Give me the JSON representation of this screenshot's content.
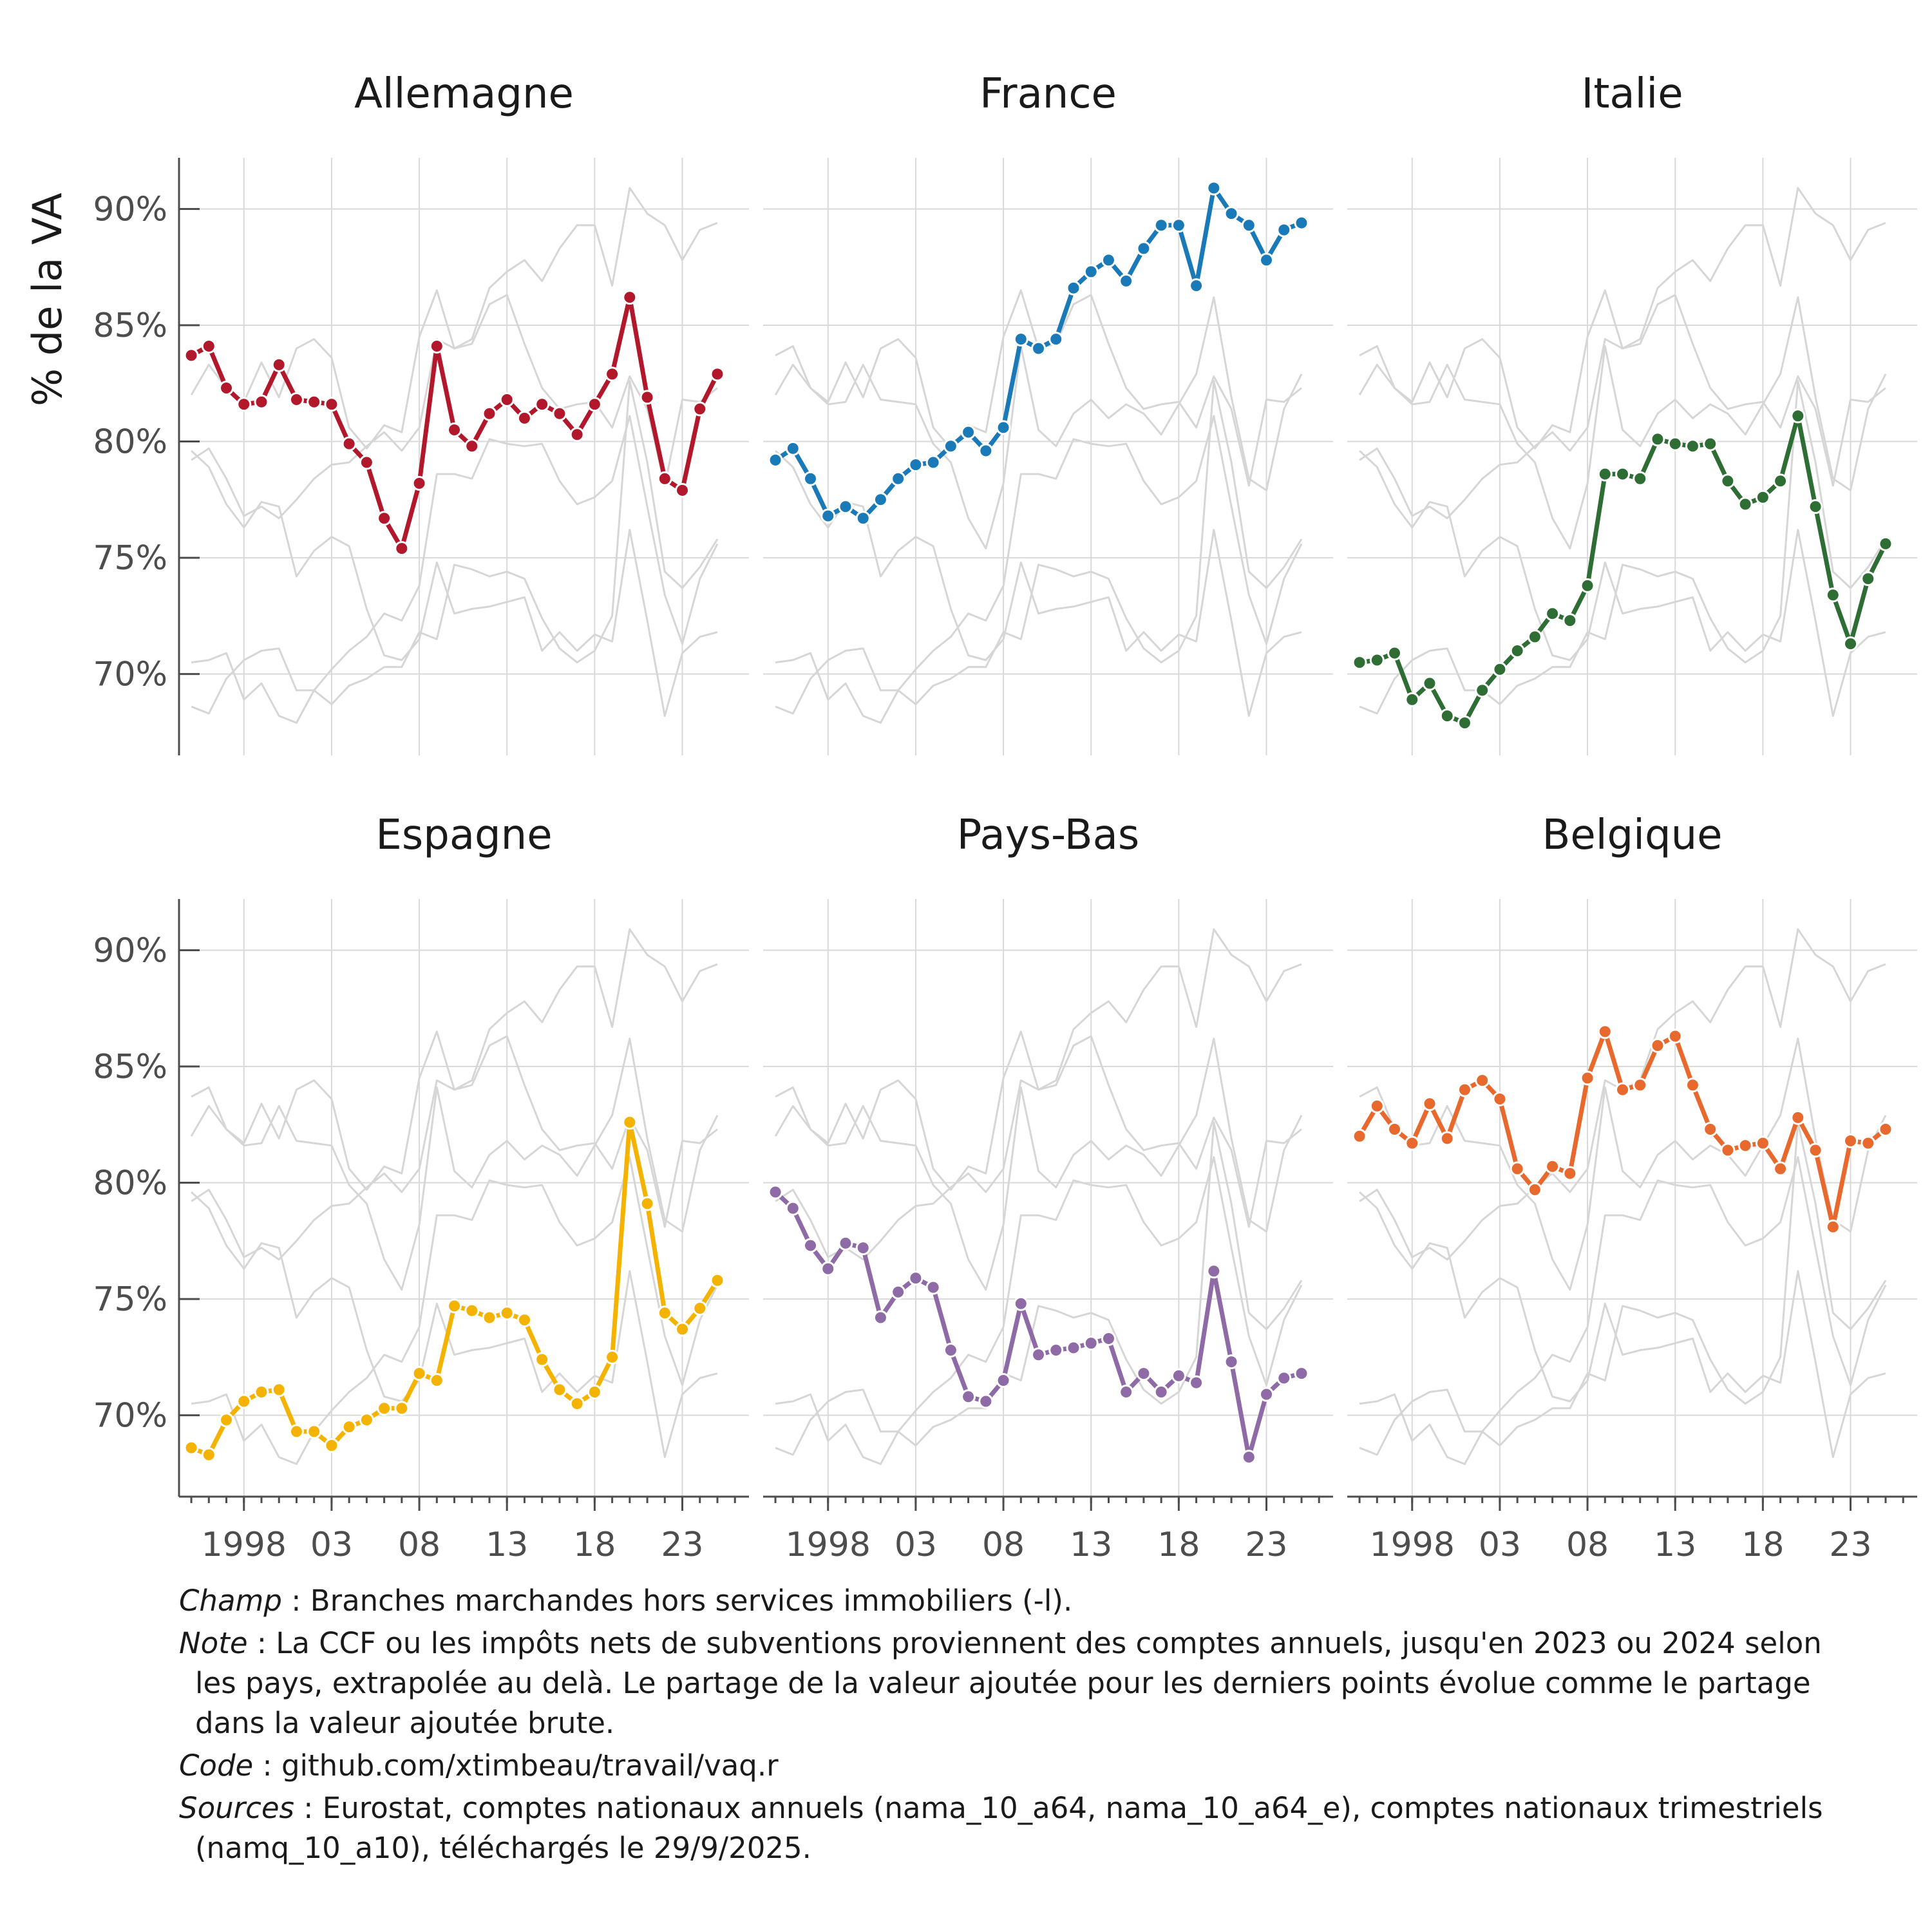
{
  "chart_data": {
    "type": "line",
    "ylabel": "% de la VA",
    "ylim": [
      66.5,
      92.2
    ],
    "yticks": [
      70,
      75,
      80,
      85,
      90
    ],
    "ytick_labels": [
      "70%",
      "75%",
      "80%",
      "85%",
      "90%"
    ],
    "xlim": [
      1994.3,
      2026.8
    ],
    "x": [
      1995,
      1996,
      1997,
      1998,
      1999,
      2000,
      2001,
      2002,
      2003,
      2004,
      2005,
      2006,
      2007,
      2008,
      2009,
      2010,
      2011,
      2012,
      2013,
      2014,
      2015,
      2016,
      2017,
      2018,
      2019,
      2020,
      2021,
      2022,
      2023,
      2024,
      2025
    ],
    "xticks": [
      1998,
      2003,
      2008,
      2013,
      2018,
      2023
    ],
    "xtick_labels": [
      "1998",
      "03",
      "08",
      "13",
      "18",
      "23"
    ],
    "minor_xticks": [
      1995,
      1996,
      1997,
      1998,
      1999,
      2000,
      2001,
      2002,
      2003,
      2004,
      2005,
      2006,
      2007,
      2008,
      2009,
      2010,
      2011,
      2012,
      2013,
      2014,
      2015,
      2016,
      2017,
      2018,
      2019,
      2020,
      2021,
      2022,
      2023,
      2024,
      2025,
      2026
    ],
    "grid": true,
    "background_series_color": "#d6d6d6",
    "series": [
      {
        "name": "Allemagne",
        "color": "#b2182b",
        "values": [
          83.7,
          84.1,
          82.3,
          81.6,
          81.7,
          83.3,
          81.8,
          81.7,
          81.6,
          79.9,
          79.1,
          76.7,
          75.4,
          78.2,
          84.1,
          80.5,
          79.8,
          81.2,
          81.8,
          81.0,
          81.6,
          81.2,
          80.3,
          81.6,
          82.9,
          86.2,
          81.9,
          78.4,
          77.9,
          81.4,
          82.9
        ]
      },
      {
        "name": "France",
        "color": "#1a7ab8",
        "values": [
          79.2,
          79.7,
          78.4,
          76.8,
          77.2,
          76.7,
          77.5,
          78.4,
          79.0,
          79.1,
          79.8,
          80.4,
          79.6,
          80.6,
          84.4,
          84.0,
          84.4,
          86.6,
          87.3,
          87.8,
          86.9,
          88.3,
          89.3,
          89.3,
          86.7,
          90.9,
          89.8,
          89.3,
          87.8,
          89.1,
          89.4
        ]
      },
      {
        "name": "Italie",
        "color": "#2e6e35",
        "values": [
          70.5,
          70.6,
          70.9,
          68.9,
          69.6,
          68.2,
          67.9,
          69.3,
          70.2,
          71.0,
          71.6,
          72.6,
          72.3,
          73.8,
          78.6,
          78.6,
          78.4,
          80.1,
          79.9,
          79.8,
          79.9,
          78.3,
          77.3,
          77.6,
          78.3,
          81.1,
          77.2,
          73.4,
          71.3,
          74.1,
          75.6
        ]
      },
      {
        "name": "Espagne",
        "color": "#f4b300",
        "values": [
          68.6,
          68.3,
          69.8,
          70.6,
          71.0,
          71.1,
          69.3,
          69.3,
          68.7,
          69.5,
          69.8,
          70.3,
          70.3,
          71.8,
          71.5,
          74.7,
          74.5,
          74.2,
          74.4,
          74.1,
          72.4,
          71.1,
          70.5,
          71.0,
          72.5,
          82.6,
          79.1,
          74.4,
          73.7,
          74.6,
          75.8
        ]
      },
      {
        "name": "Pays-Bas",
        "color": "#8e6aa6",
        "values": [
          79.6,
          78.9,
          77.3,
          76.3,
          77.4,
          77.2,
          74.2,
          75.3,
          75.9,
          75.5,
          72.8,
          70.8,
          70.6,
          71.5,
          74.8,
          72.6,
          72.8,
          72.9,
          73.1,
          73.3,
          71.0,
          71.8,
          71.0,
          71.7,
          71.4,
          76.2,
          72.3,
          68.2,
          70.9,
          71.6,
          71.8
        ]
      },
      {
        "name": "Belgique",
        "color": "#e8692d",
        "values": [
          82.0,
          83.3,
          82.3,
          81.7,
          83.4,
          81.9,
          84.0,
          84.4,
          83.6,
          80.6,
          79.7,
          80.7,
          80.4,
          84.5,
          86.5,
          84.0,
          84.2,
          85.9,
          86.3,
          84.2,
          82.3,
          81.4,
          81.6,
          81.7,
          80.6,
          82.8,
          81.4,
          78.1,
          81.8,
          81.7,
          82.3
        ]
      }
    ]
  },
  "notes": {
    "champ_key": "Champ",
    "champ_text": " : Branches marchandes hors services immobiliers (-l).",
    "note_key": "Note",
    "note_text_1": " : La CCF ou les impôts nets de subventions proviennent des comptes annuels, jusqu'en 2023 ou 2024 selon",
    "note_text_2": "les pays, extrapolée au delà. Le partage de la valeur ajoutée pour les derniers points évolue comme le partage",
    "note_text_3": "dans la valeur ajoutée brute.",
    "code_key": "Code",
    "code_text": " : github.com/xtimbeau/travail/vaq.r",
    "sources_key": "Sources",
    "sources_text_1": " : Eurostat, comptes nationaux annuels (nama_10_a64, nama_10_a64_e), comptes nationaux trimestriels",
    "sources_text_2": "(namq_10_a10), téléchargés le 29/9/2025."
  }
}
